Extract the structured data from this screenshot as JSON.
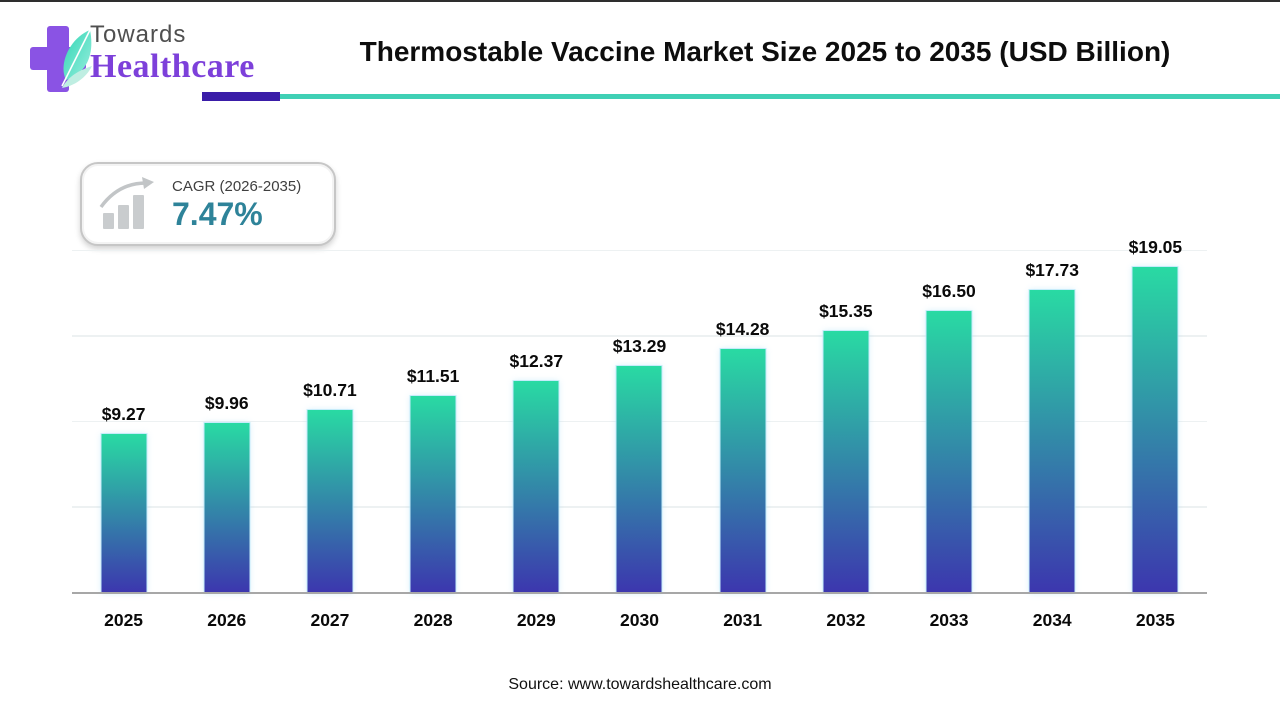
{
  "header": {
    "logo": {
      "towards": "Towards",
      "healthcare": "Healthcare"
    },
    "title": "Thermostable Vaccine Market Size 2025 to 2035 (USD Billion)"
  },
  "cagr_badge": {
    "label": "CAGR (2026-2035)",
    "value": "7.47%"
  },
  "chart_data": {
    "type": "bar",
    "title": "Thermostable Vaccine Market Size 2025 to 2035 (USD Billion)",
    "categories": [
      "2025",
      "2026",
      "2027",
      "2028",
      "2029",
      "2030",
      "2031",
      "2032",
      "2033",
      "2034",
      "2035"
    ],
    "values": [
      9.27,
      9.96,
      10.71,
      11.51,
      12.37,
      13.29,
      14.28,
      15.35,
      16.5,
      17.73,
      19.05
    ],
    "value_labels": [
      "$9.27",
      "$9.96",
      "$10.71",
      "$11.51",
      "$12.37",
      "$13.29",
      "$14.28",
      "$15.35",
      "$16.50",
      "$17.73",
      "$19.05"
    ],
    "xlabel": "",
    "ylabel": "",
    "ylim": [
      0,
      20
    ],
    "gridline_step": 5,
    "grid": "horizontal-only",
    "legend": "none",
    "bar_gradient_top": "#29daa3",
    "bar_gradient_bottom": "#3c36ae"
  },
  "source": "Source: www.towardshealthcare.com",
  "colors": {
    "divider_purple": "#3a1da8",
    "divider_teal": "#3fd0b5",
    "cagr_value_teal": "#2e8399",
    "logo_cross_purple": "#8a53e4",
    "logo_healthcare_purple": "#7d40da",
    "leaf_teal": "#3ed3b2",
    "axis_line": "#a7a7a7",
    "gridline": "#edf1f2",
    "title_text": "#0d0d0d"
  }
}
